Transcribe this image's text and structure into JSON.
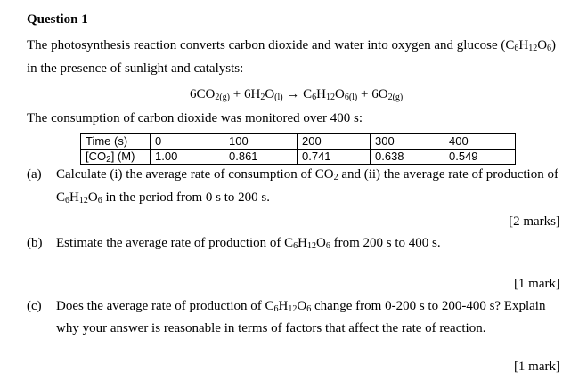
{
  "question": {
    "title": "Question 1",
    "intro_line1_a": "The photosynthesis reaction converts carbon dioxide and water into oxygen and glucose (C",
    "intro_line1_s1": "6",
    "intro_line1_b": "H",
    "intro_line1_s2": "12",
    "intro_line1_c": "O",
    "intro_line1_s3": "6",
    "intro_line1_d": ")",
    "intro_line2": "in the presence of sunlight and catalysts:",
    "equation": {
      "t1": "6CO",
      "s1": "2(g)",
      "t2": " + 6H",
      "s2": "2",
      "t3": "O",
      "s3": "(l)",
      "t4": " → C",
      "s4": "6",
      "t5": "H",
      "s5": "12",
      "t6": "O",
      "s6": "6(l)",
      "t7": " + 6O",
      "s7": "2(g)"
    },
    "monitor_text": "The consumption of carbon dioxide was monitored over 400 s:"
  },
  "table": {
    "row1": [
      "Time (s)",
      "0",
      "100",
      "200",
      "300",
      "400"
    ],
    "row2_label_a": "[CO",
    "row2_label_s": "2",
    "row2_label_b": "] (M)",
    "row2": [
      "1.00",
      "0.861",
      "0.741",
      "0.638",
      "0.549"
    ]
  },
  "part_a": {
    "label": "(a)",
    "l1_a": "Calculate (i) the average rate of consumption of CO",
    "l1_s": "2",
    "l1_b": " and (ii) the average rate of production of",
    "l2_a": "C",
    "l2_s1": "6",
    "l2_b": "H",
    "l2_s2": "12",
    "l2_c": "O",
    "l2_s3": "6",
    "l2_d": " in the period from 0 s to 200 s.",
    "marks": "[2 marks]"
  },
  "part_b": {
    "label": "(b)",
    "l1_a": "Estimate the average rate of production of C",
    "l1_s1": "6",
    "l1_b": "H",
    "l1_s2": "12",
    "l1_c": "O",
    "l1_s3": "6",
    "l1_d": " from 200 s to 400 s.",
    "marks": "[1 mark]"
  },
  "part_c": {
    "label": "(c)",
    "l1_a": "Does the average rate of production of C",
    "l1_s1": "6",
    "l1_b": "H",
    "l1_s2": "12",
    "l1_c": "O",
    "l1_s3": "6",
    "l1_d": " change from 0-200 s to 200-400 s? Explain",
    "l2": "why your answer is reasonable in terms of factors that affect the rate of reaction.",
    "marks": "[1 mark]"
  }
}
